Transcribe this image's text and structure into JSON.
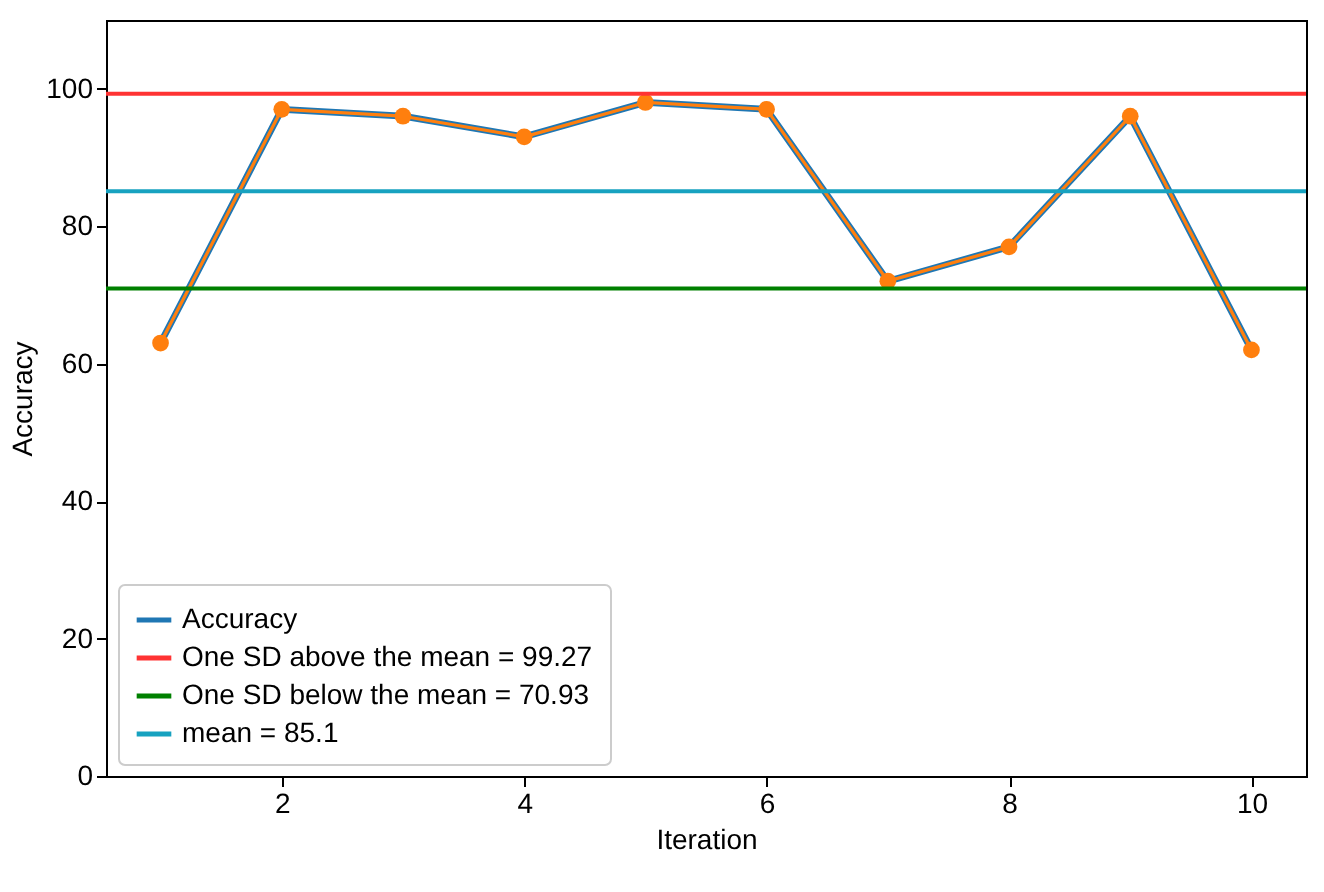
{
  "chart_data": {
    "type": "line",
    "xlabel": "Iteration",
    "ylabel": "Accuracy",
    "x": [
      1,
      2,
      3,
      4,
      5,
      6,
      7,
      8,
      9,
      10
    ],
    "series": [
      {
        "name": "Accuracy",
        "color": "#1f77b4",
        "values": [
          63,
          97,
          96,
          93,
          98,
          97,
          72,
          77,
          96,
          62
        ],
        "marker": "none"
      },
      {
        "color": "#ff7f0e",
        "values": [
          63,
          97,
          96,
          93,
          98,
          97,
          72,
          77,
          96,
          62
        ],
        "marker": "circle"
      }
    ],
    "ref_lines": [
      {
        "axis": "y",
        "value": 99.27,
        "label": "One SD above the mean = 99.27",
        "color": "#ff3333"
      },
      {
        "axis": "y",
        "value": 70.93,
        "label": "One SD below the mean = 70.93",
        "color": "#008000"
      },
      {
        "axis": "y",
        "value": 85.1,
        "label": "mean = 85.1",
        "color": "#17a2c0"
      }
    ],
    "xlim": [
      0.55,
      10.45
    ],
    "xticks": [
      2,
      4,
      6,
      8,
      10
    ],
    "ylim": [
      0,
      110
    ],
    "yticks": [
      0,
      20,
      40,
      60,
      80,
      100
    ],
    "grid": false,
    "legend": "bottom left",
    "line_style": "solid"
  }
}
